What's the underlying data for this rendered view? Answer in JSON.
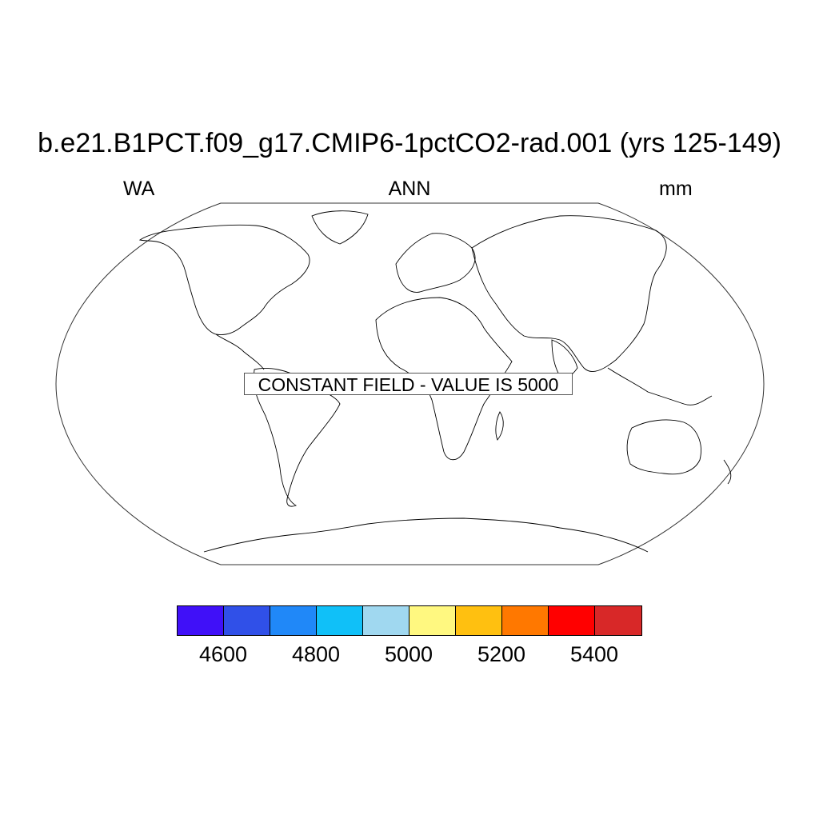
{
  "plot": {
    "title": "b.e21.B1PCT.f09_g17.CMIP6-1pctCO2-rad.001 (yrs 125-149)",
    "left_label": "WA",
    "center_label": "ANN",
    "right_label": "mm",
    "notice": "CONSTANT FIELD - VALUE IS 5000"
  },
  "map": {
    "projection": "Robinson",
    "coastline_color": "#000000"
  },
  "colorbar": {
    "colors": [
      "#4010f8",
      "#3050e8",
      "#2088f8",
      "#10c0f8",
      "#a0d8f0",
      "#fff880",
      "#ffc010",
      "#ff7800",
      "#ff0000",
      "#d82828"
    ],
    "labels": [
      "4600",
      "4800",
      "5000",
      "5200",
      "5400"
    ]
  }
}
